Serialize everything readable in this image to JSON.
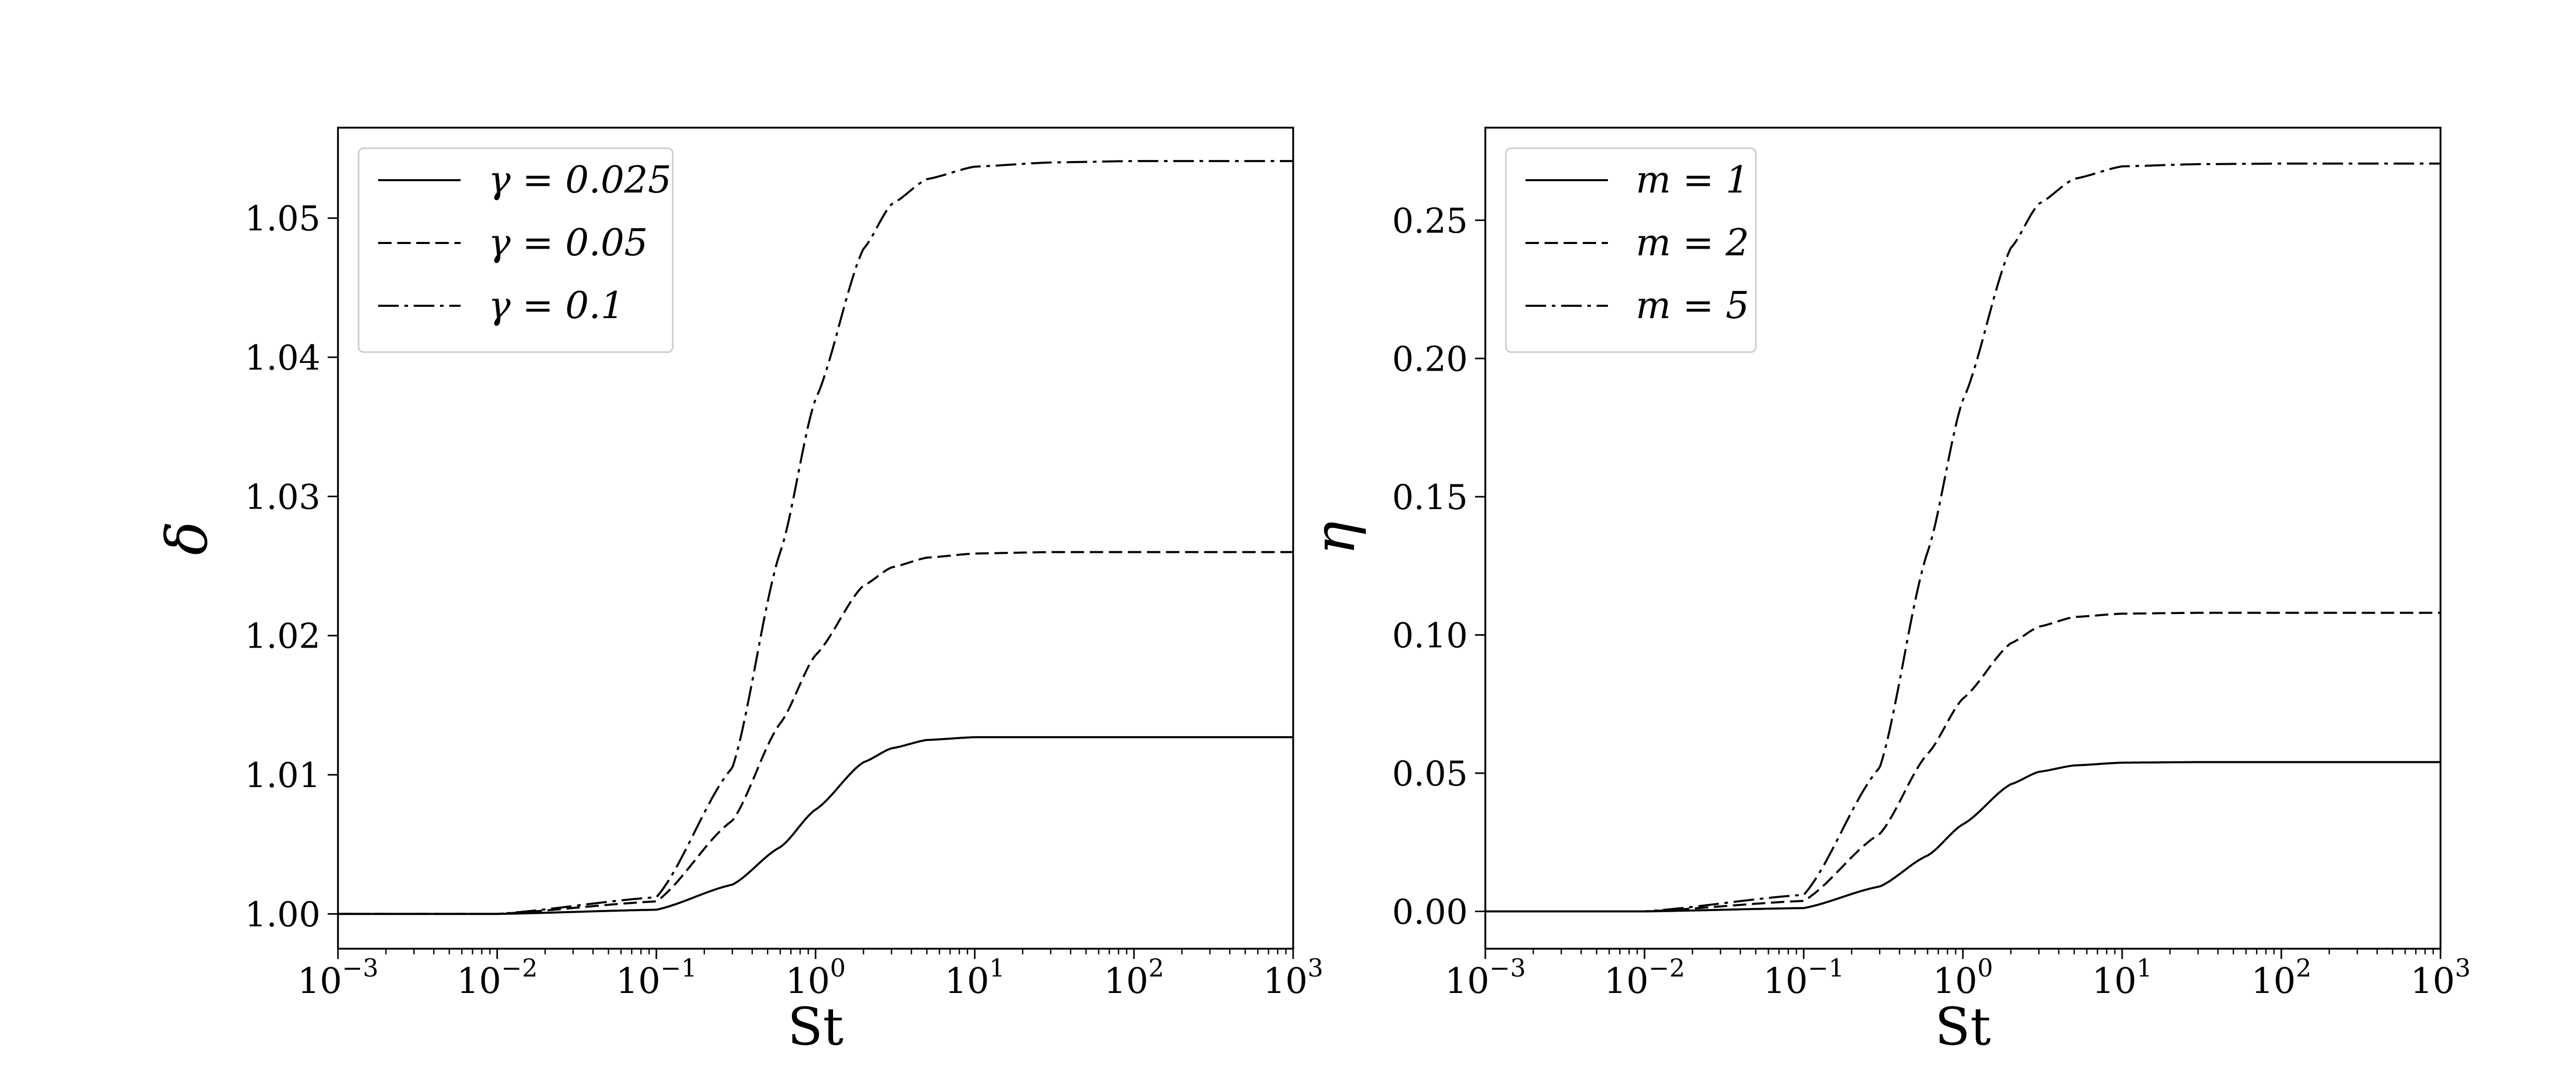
{
  "chart_data": [
    {
      "type": "line",
      "xscale": "log",
      "xlim": [
        0.001,
        1000
      ],
      "ylim": [
        0.9975,
        1.0565
      ],
      "xlabel": "St",
      "ylabel": "δ",
      "xticks": [
        {
          "value": 0.001,
          "base": "10",
          "exp": "−3"
        },
        {
          "value": 0.01,
          "base": "10",
          "exp": "−2"
        },
        {
          "value": 0.1,
          "base": "10",
          "exp": "−1"
        },
        {
          "value": 1,
          "base": "10",
          "exp": "0"
        },
        {
          "value": 10,
          "base": "10",
          "exp": "1"
        },
        {
          "value": 100,
          "base": "10",
          "exp": "2"
        },
        {
          "value": 1000,
          "base": "10",
          "exp": "3"
        }
      ],
      "yticks": [
        {
          "value": 1.0,
          "label": "1.00"
        },
        {
          "value": 1.01,
          "label": "1.01"
        },
        {
          "value": 1.02,
          "label": "1.02"
        },
        {
          "value": 1.03,
          "label": "1.03"
        },
        {
          "value": 1.04,
          "label": "1.04"
        },
        {
          "value": 1.05,
          "label": "1.05"
        }
      ],
      "legend_position": "top-left",
      "series": [
        {
          "name": "γ = 0.025",
          "style": "solid",
          "baseline": 1.0,
          "plateau": 1.0127,
          "x": [
            0.001,
            0.01,
            0.1,
            0.3,
            0.6,
            1,
            2,
            3,
            5,
            10,
            30,
            100,
            1000
          ],
          "y": [
            1.0,
            1.0,
            1.0003,
            1.0021,
            1.0048,
            1.0075,
            1.0109,
            1.0119,
            1.0125,
            1.0127,
            1.0127,
            1.0127,
            1.0127
          ]
        },
        {
          "name": "γ = 0.05",
          "style": "dashed",
          "baseline": 1.0,
          "plateau": 1.026,
          "x": [
            0.001,
            0.01,
            0.1,
            0.3,
            0.6,
            1,
            2,
            3,
            5,
            10,
            30,
            100,
            1000
          ],
          "y": [
            1.0,
            1.0,
            1.0009,
            1.0067,
            1.0137,
            1.0186,
            1.0236,
            1.0249,
            1.0256,
            1.0259,
            1.026,
            1.026,
            1.026
          ]
        },
        {
          "name": "γ = 0.1",
          "style": "dashdot",
          "baseline": 1.0,
          "plateau": 1.0541,
          "x": [
            0.001,
            0.01,
            0.1,
            0.3,
            0.6,
            1,
            2,
            3,
            5,
            10,
            30,
            100,
            1000
          ],
          "y": [
            1.0,
            1.0,
            1.0012,
            1.0105,
            1.026,
            1.037,
            1.0478,
            1.051,
            1.0528,
            1.0537,
            1.054,
            1.0541,
            1.0541
          ]
        }
      ]
    },
    {
      "type": "line",
      "xscale": "log",
      "xlim": [
        0.001,
        1000
      ],
      "ylim": [
        -0.0135,
        0.2835
      ],
      "xlabel": "St",
      "ylabel": "η",
      "xticks": [
        {
          "value": 0.001,
          "base": "10",
          "exp": "−3"
        },
        {
          "value": 0.01,
          "base": "10",
          "exp": "−2"
        },
        {
          "value": 0.1,
          "base": "10",
          "exp": "−1"
        },
        {
          "value": 1,
          "base": "10",
          "exp": "0"
        },
        {
          "value": 10,
          "base": "10",
          "exp": "1"
        },
        {
          "value": 100,
          "base": "10",
          "exp": "2"
        },
        {
          "value": 1000,
          "base": "10",
          "exp": "3"
        }
      ],
      "yticks": [
        {
          "value": 0.0,
          "label": "0.00"
        },
        {
          "value": 0.05,
          "label": "0.05"
        },
        {
          "value": 0.1,
          "label": "0.10"
        },
        {
          "value": 0.15,
          "label": "0.15"
        },
        {
          "value": 0.2,
          "label": "0.20"
        },
        {
          "value": 0.25,
          "label": "0.25"
        }
      ],
      "legend_position": "top-left",
      "series": [
        {
          "name": "m = 1",
          "style": "solid",
          "baseline": 0.0,
          "plateau": 0.054,
          "x": [
            0.001,
            0.01,
            0.1,
            0.3,
            0.6,
            1,
            2,
            3,
            5,
            10,
            30,
            100,
            1000
          ],
          "y": [
            0.0,
            0.0,
            0.0012,
            0.009,
            0.0202,
            0.0315,
            0.046,
            0.0505,
            0.0528,
            0.0538,
            0.054,
            0.054,
            0.054
          ]
        },
        {
          "name": "m = 2",
          "style": "dashed",
          "baseline": 0.0,
          "plateau": 0.108,
          "x": [
            0.001,
            0.01,
            0.1,
            0.3,
            0.6,
            1,
            2,
            3,
            5,
            10,
            30,
            100,
            1000
          ],
          "y": [
            0.0,
            0.0,
            0.0038,
            0.028,
            0.057,
            0.077,
            0.097,
            0.103,
            0.1065,
            0.1077,
            0.108,
            0.108,
            0.108
          ]
        },
        {
          "name": "m = 5",
          "style": "dashdot",
          "baseline": 0.0,
          "plateau": 0.2705,
          "x": [
            0.001,
            0.01,
            0.1,
            0.3,
            0.6,
            1,
            2,
            3,
            5,
            10,
            30,
            100,
            1000
          ],
          "y": [
            0.0,
            0.0,
            0.006,
            0.052,
            0.13,
            0.185,
            0.24,
            0.256,
            0.265,
            0.2695,
            0.2703,
            0.2705,
            0.2705
          ]
        }
      ]
    }
  ]
}
